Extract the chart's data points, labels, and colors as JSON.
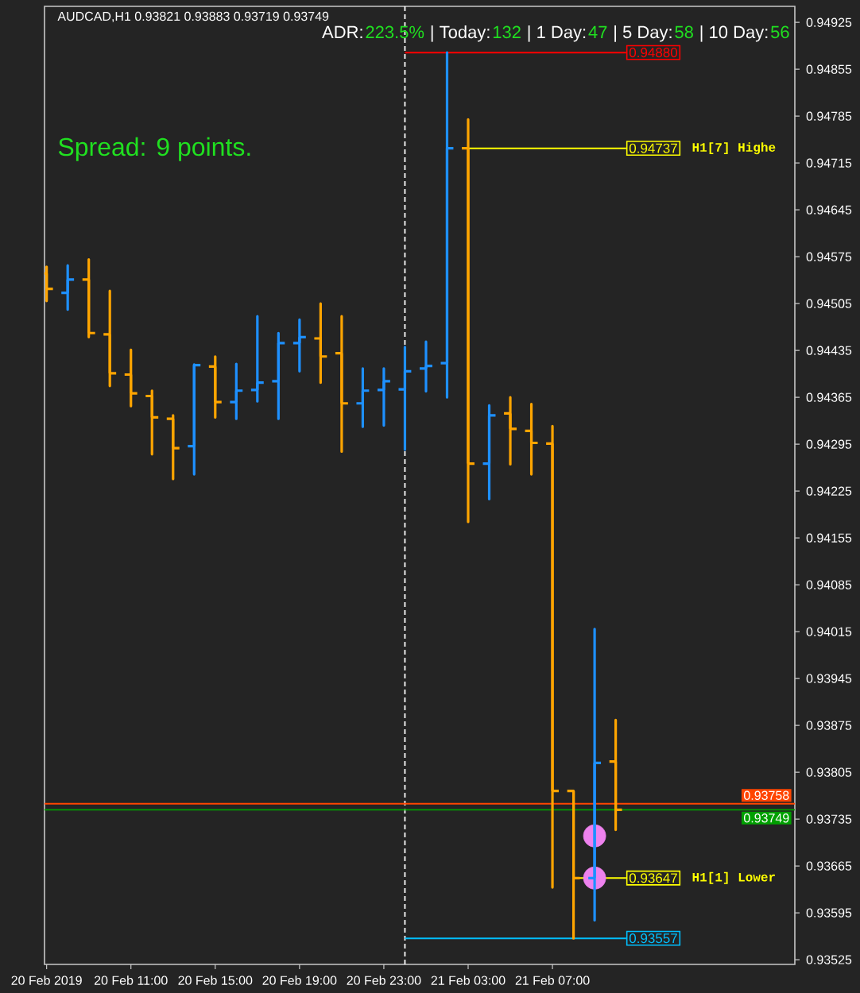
{
  "chart_data": {
    "type": "candlestick",
    "title": "AUDCAD,H1 0.93821 0.93883 0.93719 0.93749",
    "x": [
      "2019-02-20T07:00",
      "2019-02-20T08:00",
      "2019-02-20T09:00",
      "2019-02-20T10:00",
      "2019-02-20T11:00",
      "2019-02-20T12:00",
      "2019-02-20T13:00",
      "2019-02-20T14:00",
      "2019-02-20T15:00",
      "2019-02-20T16:00",
      "2019-02-20T17:00",
      "2019-02-20T18:00",
      "2019-02-20T19:00",
      "2019-02-20T20:00",
      "2019-02-20T21:00",
      "2019-02-20T22:00",
      "2019-02-20T23:00",
      "2019-02-21T00:00",
      "2019-02-21T01:00",
      "2019-02-21T02:00",
      "2019-02-21T03:00",
      "2019-02-21T04:00",
      "2019-02-21T05:00",
      "2019-02-21T06:00",
      "2019-02-21T07:00",
      "2019-02-21T08:00",
      "2019-02-21T09:00",
      "2019-02-21T10:00"
    ],
    "ohlc": [
      [
        0.9455,
        0.9456,
        0.94509,
        0.94527
      ],
      [
        0.94521,
        0.94562,
        0.94496,
        0.94541
      ],
      [
        0.94541,
        0.94571,
        0.94455,
        0.94461
      ],
      [
        0.94459,
        0.94524,
        0.94382,
        0.94401
      ],
      [
        0.94399,
        0.94436,
        0.94352,
        0.94371
      ],
      [
        0.94367,
        0.94375,
        0.9428,
        0.94335
      ],
      [
        0.94333,
        0.94338,
        0.94243,
        0.94289
      ],
      [
        0.94292,
        0.94414,
        0.9425,
        0.94413
      ],
      [
        0.94411,
        0.94426,
        0.94335,
        0.94358
      ],
      [
        0.94358,
        0.94415,
        0.94333,
        0.94375
      ],
      [
        0.94376,
        0.94486,
        0.94359,
        0.94387
      ],
      [
        0.94389,
        0.94461,
        0.94333,
        0.94446
      ],
      [
        0.94446,
        0.94481,
        0.94404,
        0.94455
      ],
      [
        0.94453,
        0.94505,
        0.94387,
        0.94426
      ],
      [
        0.94431,
        0.94486,
        0.94284,
        0.94356
      ],
      [
        0.94356,
        0.94408,
        0.94321,
        0.94375
      ],
      [
        0.94376,
        0.94408,
        0.94323,
        0.94389
      ],
      [
        0.94377,
        0.9444,
        0.94287,
        0.94404
      ],
      [
        0.94408,
        0.94448,
        0.94374,
        0.94412
      ],
      [
        0.94416,
        0.9488,
        0.94365,
        0.94737
      ],
      [
        0.94737,
        0.9478,
        0.94179,
        0.94266
      ],
      [
        0.94266,
        0.94353,
        0.94213,
        0.94338
      ],
      [
        0.94341,
        0.94365,
        0.94265,
        0.94318
      ],
      [
        0.94315,
        0.94355,
        0.9425,
        0.94297
      ],
      [
        0.94296,
        0.94322,
        0.93633,
        0.93777
      ],
      [
        0.93777,
        0.93777,
        0.93557,
        0.93647
      ],
      [
        0.93647,
        0.94019,
        0.93584,
        0.93819
      ],
      [
        0.93821,
        0.93883,
        0.93719,
        0.93749
      ]
    ],
    "colors": [
      "#ffa500",
      "#1e90ff",
      "#ffa500",
      "#ffa500",
      "#ffa500",
      "#ffa500",
      "#ffa500",
      "#1e90ff",
      "#ffa500",
      "#1e90ff",
      "#1e90ff",
      "#1e90ff",
      "#1e90ff",
      "#ffa500",
      "#ffa500",
      "#1e90ff",
      "#1e90ff",
      "#1e90ff",
      "#1e90ff",
      "#1e90ff",
      "#ffa500",
      "#1e90ff",
      "#ffa500",
      "#ffa500",
      "#ffa500",
      "#ffa500",
      "#1e90ff",
      "#ffa500"
    ],
    "series": [
      {
        "type": "line",
        "x": [
          "2019-02-21T00:00",
          "2019-02-21T10:30"
        ],
        "values": [
          0.9488,
          0.9488
        ],
        "value_labels": [
          null,
          "0.94880"
        ],
        "color": "#ff0000"
      },
      {
        "type": "line",
        "name": "H1[7] Highe",
        "x": [
          "2019-02-21T03:00",
          "2019-02-21T10:30"
        ],
        "values": [
          0.94737,
          0.94737
        ],
        "value_labels": [
          null,
          "0.94737"
        ],
        "color": "#ffff00"
      },
      {
        "type": "line",
        "name": "H1[1] Lower",
        "x": [
          "2019-02-21T08:00",
          "2019-02-21T10:30"
        ],
        "values": [
          0.93647,
          0.93647
        ],
        "value_labels": [
          null,
          "0.93647"
        ],
        "color": "#ffff00"
      },
      {
        "type": "line",
        "x": [
          "2019-02-21T00:00",
          "2019-02-21T10:30"
        ],
        "values": [
          0.93557,
          0.93557
        ],
        "value_labels": [
          null,
          "0.93557"
        ],
        "color": "#00bfff"
      },
      {
        "type": "scatter",
        "x": [
          "2019-02-21T09:00",
          "2019-02-21T09:00"
        ],
        "values": [
          0.9371,
          0.93647
        ],
        "color": "#ee82ee",
        "marker": "circle"
      }
    ],
    "ref_lines": [
      {
        "axis": "x",
        "value": "2019-02-21T00:00",
        "color": "#ffffff",
        "line_style": "dashed"
      },
      {
        "axis": "y",
        "value": 0.93758,
        "label": "0.93758",
        "color": "#ff4500"
      },
      {
        "axis": "y",
        "value": 0.93749,
        "label": "0.93749",
        "color": "#00a000"
      }
    ],
    "legend": "right",
    "xlim": [
      "2019-02-20T06:54",
      "2019-02-21T18:30"
    ],
    "ylim": [
      0.93518,
      0.94949
    ],
    "xticks": [
      {
        "value": "2019-02-20T07:00",
        "label": "20 Feb 2019"
      },
      {
        "value": "2019-02-20T11:00",
        "label": "20 Feb 11:00"
      },
      {
        "value": "2019-02-20T15:00",
        "label": "20 Feb 15:00"
      },
      {
        "value": "2019-02-20T19:00",
        "label": "20 Feb 19:00"
      },
      {
        "value": "2019-02-20T23:00",
        "label": "20 Feb 23:00"
      },
      {
        "value": "2019-02-21T03:00",
        "label": "21 Feb 03:00"
      },
      {
        "value": "2019-02-21T07:00",
        "label": "21 Feb 07:00"
      }
    ],
    "yticks": [
      0.93525,
      0.93595,
      0.93665,
      0.93735,
      0.93805,
      0.93875,
      0.93945,
      0.94015,
      0.94085,
      0.94155,
      0.94225,
      0.94295,
      0.94365,
      0.94435,
      0.94505,
      0.94575,
      0.94645,
      0.94715,
      0.94785,
      0.94855,
      0.94925
    ],
    "annotations": [
      "ADR:",
      "223.5%",
      "| Today:",
      "132",
      "| 1 Day:",
      "47",
      "| 5 Day:",
      "58",
      "| 10 Day:",
      "56",
      "Spread: 9 points."
    ]
  }
}
